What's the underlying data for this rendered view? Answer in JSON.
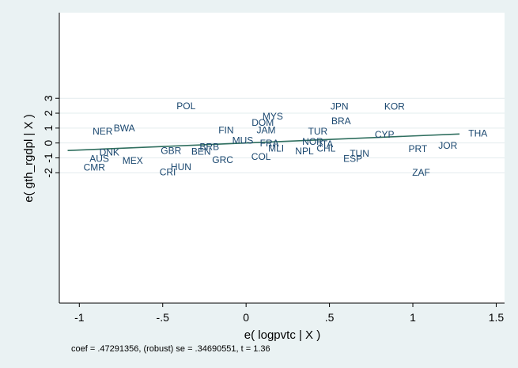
{
  "chart_data": {
    "type": "scatter",
    "title": "",
    "xlabel": "e( logpvtc | X )",
    "ylabel": "e( gth_rgdpl | X )",
    "xlim": [
      -1.12,
      1.55
    ],
    "ylim": [
      -10.75,
      8.75
    ],
    "x_ticks": [
      -1,
      -0.5,
      0,
      0.5,
      1,
      1.5
    ],
    "x_tick_labels": [
      "-1",
      "-.5",
      "0",
      ".5",
      "1",
      "1.5"
    ],
    "y_ticks": [
      -2,
      -1,
      0,
      1,
      2,
      3
    ],
    "y_tick_labels": [
      "-2",
      "-1",
      "0",
      "1",
      "2",
      "3"
    ],
    "grid": "horizontal",
    "fit_line": {
      "slope": 0.47291356,
      "intercept": 0.0,
      "x_range": [
        -1.07,
        1.28
      ],
      "color": "#2e6e5e"
    },
    "points": [
      {
        "label": "CMR",
        "x": -0.91,
        "y": -1.65
      },
      {
        "label": "AUS",
        "x": -0.88,
        "y": -1.06
      },
      {
        "label": "DNK",
        "x": -0.82,
        "y": -0.62
      },
      {
        "label": "NER",
        "x": -0.86,
        "y": 0.77
      },
      {
        "label": "BWA",
        "x": -0.73,
        "y": 0.98
      },
      {
        "label": "MEX",
        "x": -0.68,
        "y": -1.18
      },
      {
        "label": "GBR",
        "x": -0.45,
        "y": -0.52
      },
      {
        "label": "CRI",
        "x": -0.47,
        "y": -1.95
      },
      {
        "label": "HUN",
        "x": -0.39,
        "y": -1.6
      },
      {
        "label": "POL",
        "x": -0.36,
        "y": 2.48
      },
      {
        "label": "BEN",
        "x": -0.27,
        "y": -0.58
      },
      {
        "label": "BRB",
        "x": -0.22,
        "y": -0.25
      },
      {
        "label": "GRC",
        "x": -0.14,
        "y": -1.12
      },
      {
        "label": "FIN",
        "x": -0.12,
        "y": 0.87
      },
      {
        "label": "MUS",
        "x": -0.02,
        "y": 0.18
      },
      {
        "label": "MYS",
        "x": 0.16,
        "y": 1.78
      },
      {
        "label": "DOM",
        "x": 0.1,
        "y": 1.36
      },
      {
        "label": "JAM",
        "x": 0.12,
        "y": 0.87
      },
      {
        "label": "FRA",
        "x": 0.14,
        "y": -0.03
      },
      {
        "label": "MLI",
        "x": 0.18,
        "y": -0.35
      },
      {
        "label": "COL",
        "x": 0.09,
        "y": -0.93
      },
      {
        "label": "TUR",
        "x": 0.43,
        "y": 0.78
      },
      {
        "label": "NOR",
        "x": 0.4,
        "y": 0.08
      },
      {
        "label": "ITA",
        "x": 0.48,
        "y": -0.07
      },
      {
        "label": "CHL",
        "x": 0.48,
        "y": -0.36
      },
      {
        "label": "NPL",
        "x": 0.35,
        "y": -0.56
      },
      {
        "label": "JPN",
        "x": 0.56,
        "y": 2.46
      },
      {
        "label": "BRA",
        "x": 0.57,
        "y": 1.47
      },
      {
        "label": "TUN",
        "x": 0.68,
        "y": -0.7
      },
      {
        "label": "ESP",
        "x": 0.64,
        "y": -1.05
      },
      {
        "label": "KOR",
        "x": 0.89,
        "y": 2.46
      },
      {
        "label": "CYP",
        "x": 0.83,
        "y": 0.58
      },
      {
        "label": "PRT",
        "x": 1.03,
        "y": -0.38
      },
      {
        "label": "JOR",
        "x": 1.21,
        "y": -0.18
      },
      {
        "label": "ZAF",
        "x": 1.05,
        "y": -1.98
      },
      {
        "label": "THA",
        "x": 1.39,
        "y": 0.64
      }
    ],
    "note": "coef = .47291356, (robust) se = .34690551, t = 1.36"
  }
}
